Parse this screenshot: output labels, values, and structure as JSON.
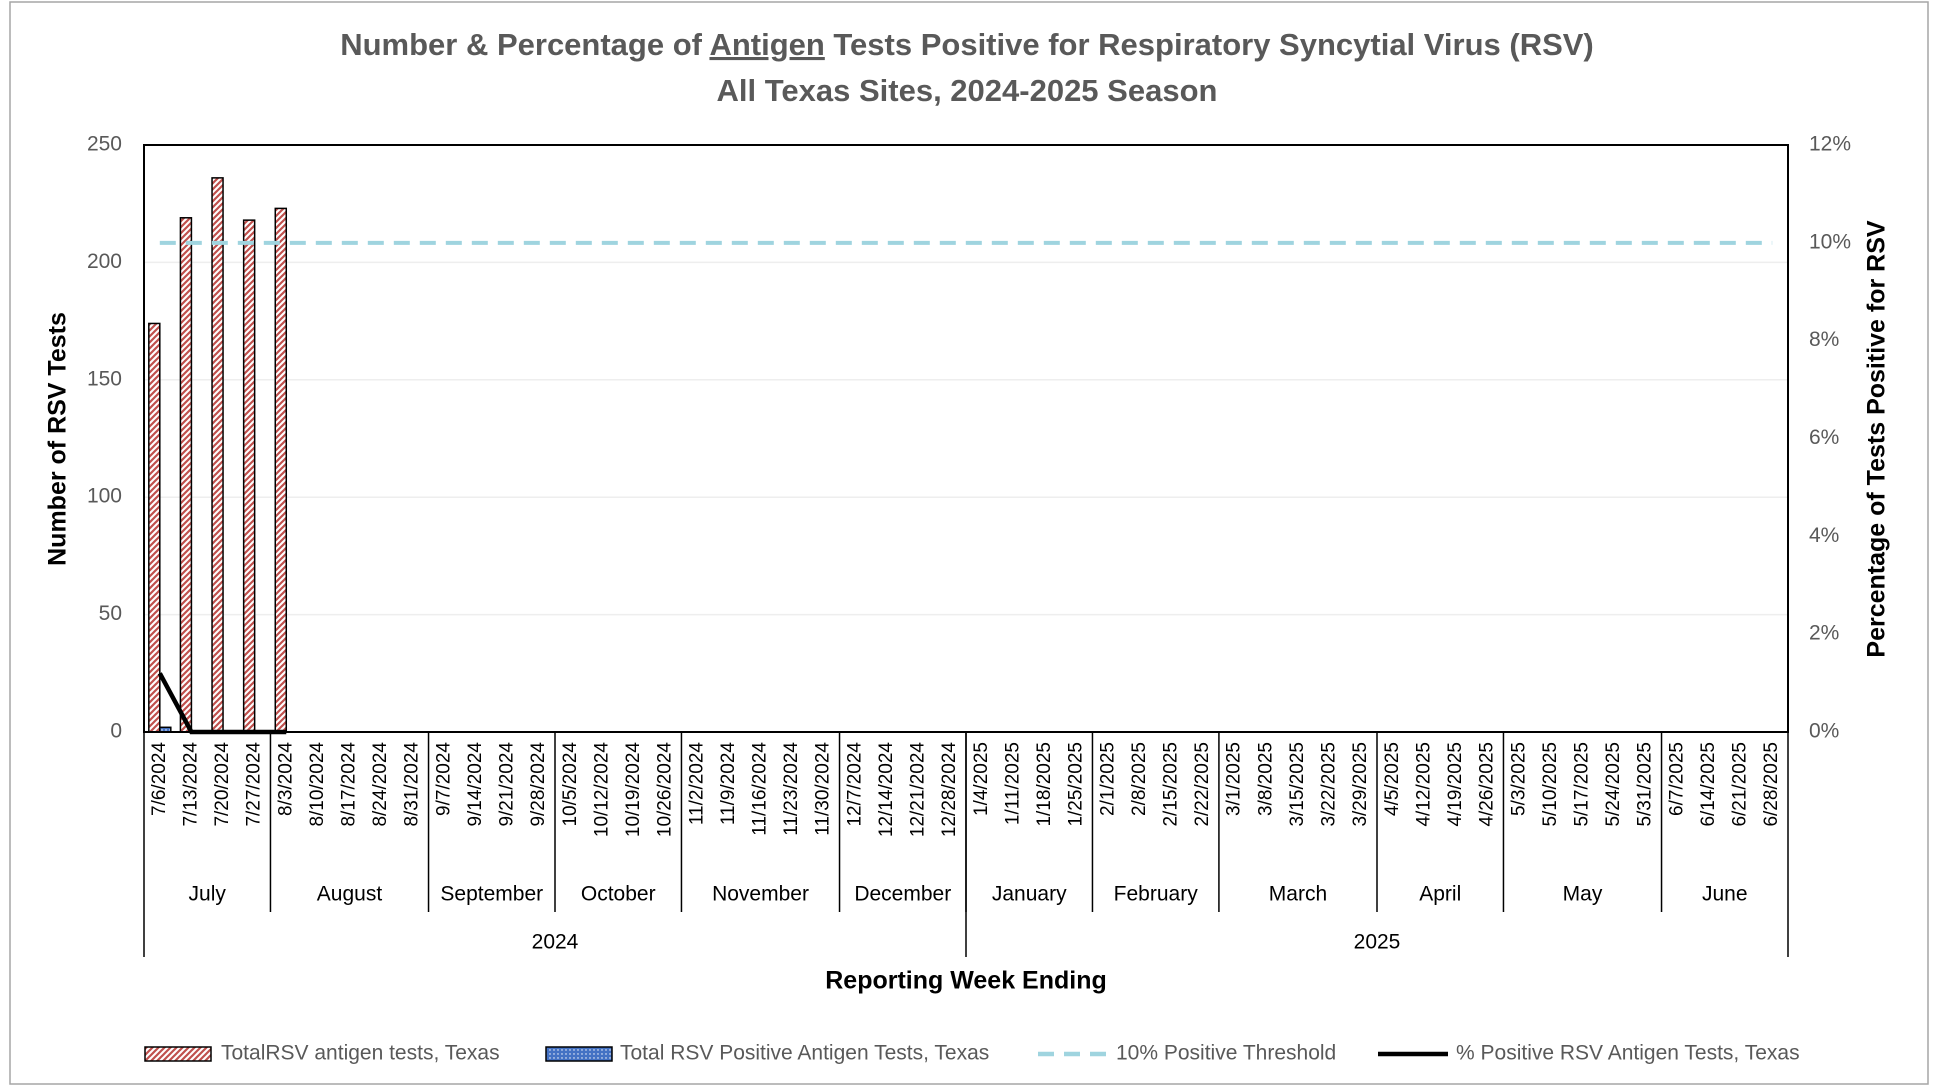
{
  "chart_data": {
    "type": "bar",
    "title": [
      "Number & Percentage of ",
      "Antigen",
      " Tests Positive for Respiratory Syncytial Virus (RSV)"
    ],
    "subtitle": "All Texas Sites, 2024-2025 Season",
    "xlabel": "Reporting Week Ending",
    "ylabel": "Number of RSV Tests",
    "y2label": "Percentage of Tests Positive for RSV",
    "categories": [
      "7/6/2024",
      "7/13/2024",
      "7/20/2024",
      "7/27/2024",
      "8/3/2024",
      "8/10/2024",
      "8/17/2024",
      "8/24/2024",
      "8/31/2024",
      "9/7/2024",
      "9/14/2024",
      "9/21/2024",
      "9/28/2024",
      "10/5/2024",
      "10/12/2024",
      "10/19/2024",
      "10/26/2024",
      "11/2/2024",
      "11/9/2024",
      "11/16/2024",
      "11/23/2024",
      "11/30/2024",
      "12/7/2024",
      "12/14/2024",
      "12/21/2024",
      "12/28/2024",
      "1/4/2025",
      "1/11/2025",
      "1/18/2025",
      "1/25/2025",
      "2/1/2025",
      "2/8/2025",
      "2/15/2025",
      "2/22/2025",
      "3/1/2025",
      "3/8/2025",
      "3/15/2025",
      "3/22/2025",
      "3/29/2025",
      "4/5/2025",
      "4/12/2025",
      "4/19/2025",
      "4/26/2025",
      "5/3/2025",
      "5/10/2025",
      "5/17/2025",
      "5/24/2025",
      "5/31/2025",
      "6/7/2025",
      "6/14/2025",
      "6/21/2025",
      "6/28/2025"
    ],
    "months": [
      "July",
      "August",
      "September",
      "October",
      "November",
      "December",
      "January",
      "February",
      "March",
      "April",
      "May",
      "June"
    ],
    "years": [
      "2024",
      "2025"
    ],
    "series": [
      {
        "name": "TotalRSV antigen tests, Texas",
        "type": "bar",
        "pattern": "stripes",
        "color": "#c0504d",
        "values": [
          174,
          219,
          236,
          218,
          223,
          null,
          null,
          null,
          null,
          null,
          null,
          null,
          null,
          null,
          null,
          null,
          null,
          null,
          null,
          null,
          null,
          null,
          null,
          null,
          null,
          null,
          null,
          null,
          null,
          null,
          null,
          null,
          null,
          null,
          null,
          null,
          null,
          null,
          null,
          null,
          null,
          null,
          null,
          null,
          null,
          null,
          null,
          null,
          null,
          null,
          null,
          null
        ]
      },
      {
        "name": "Total RSV Positive Antigen Tests, Texas",
        "type": "bar",
        "pattern": "dots",
        "color": "#4472c4",
        "values": [
          2,
          0,
          0,
          0,
          0,
          null,
          null,
          null,
          null,
          null,
          null,
          null,
          null,
          null,
          null,
          null,
          null,
          null,
          null,
          null,
          null,
          null,
          null,
          null,
          null,
          null,
          null,
          null,
          null,
          null,
          null,
          null,
          null,
          null,
          null,
          null,
          null,
          null,
          null,
          null,
          null,
          null,
          null,
          null,
          null,
          null,
          null,
          null,
          null,
          null,
          null,
          null
        ]
      },
      {
        "name": "10% Positive Threshold",
        "type": "line",
        "axis": "y2",
        "dashed": true,
        "color": "#9fd4df",
        "values": [
          10,
          10,
          10,
          10,
          10,
          10,
          10,
          10,
          10,
          10,
          10,
          10,
          10,
          10,
          10,
          10,
          10,
          10,
          10,
          10,
          10,
          10,
          10,
          10,
          10,
          10,
          10,
          10,
          10,
          10,
          10,
          10,
          10,
          10,
          10,
          10,
          10,
          10,
          10,
          10,
          10,
          10,
          10,
          10,
          10,
          10,
          10,
          10,
          10,
          10,
          10,
          10
        ]
      },
      {
        "name": "% Positive RSV Antigen Tests, Texas",
        "type": "line",
        "axis": "y2",
        "color": "#000000",
        "values": [
          1.2,
          0,
          0,
          0,
          0,
          null,
          null,
          null,
          null,
          null,
          null,
          null,
          null,
          null,
          null,
          null,
          null,
          null,
          null,
          null,
          null,
          null,
          null,
          null,
          null,
          null,
          null,
          null,
          null,
          null,
          null,
          null,
          null,
          null,
          null,
          null,
          null,
          null,
          null,
          null,
          null,
          null,
          null,
          null,
          null,
          null,
          null,
          null,
          null,
          null,
          null,
          null
        ]
      }
    ],
    "ylim": [
      0,
      250
    ],
    "yticks": [
      0,
      50,
      100,
      150,
      200,
      250
    ],
    "y2lim": [
      0,
      12
    ],
    "y2ticks": [
      {
        "value": 0,
        "label": "0%"
      },
      {
        "value": 2,
        "label": "2%"
      },
      {
        "value": 4,
        "label": "4%"
      },
      {
        "value": 6,
        "label": "6%"
      },
      {
        "value": 8,
        "label": "8%"
      },
      {
        "value": 10,
        "label": "10%"
      },
      {
        "value": 12,
        "label": "12%"
      }
    ],
    "grid": true,
    "legend": "bottom"
  }
}
